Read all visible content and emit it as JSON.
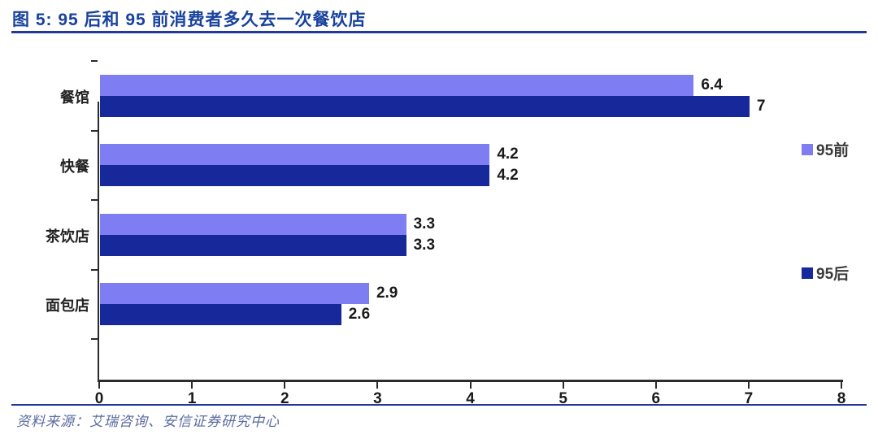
{
  "header": {
    "title": "图 5: 95 后和 95 前消费者多久去一次餐饮店"
  },
  "footer": {
    "source": "资料来源：艾瑞咨询、安信证券研究中心"
  },
  "chart_data": {
    "type": "bar",
    "orientation": "horizontal",
    "title": "95 后和 95 前消费者多久去一次餐饮店",
    "categories": [
      "餐馆",
      "快餐",
      "茶饮店",
      "面包店"
    ],
    "series": [
      {
        "name": "95前",
        "color": "#7E7EF2",
        "values": [
          6.4,
          4.2,
          3.3,
          2.9
        ]
      },
      {
        "name": "95后",
        "color": "#17289B",
        "values": [
          7,
          4.2,
          3.3,
          2.6
        ]
      }
    ],
    "xlim": [
      0,
      8
    ],
    "x_ticks": [
      0,
      1,
      2,
      3,
      4,
      5,
      6,
      7,
      8
    ],
    "grid": false,
    "legend_position": "right",
    "data_labels": true
  },
  "colors": {
    "accent_rule": "#24389B",
    "title_text": "#18429E",
    "axis": "#2b2b2b",
    "label_text": "#1a1a1a",
    "source_text": "#5B6BA0",
    "series_light": "#7E7EF2",
    "series_dark": "#17289B"
  }
}
